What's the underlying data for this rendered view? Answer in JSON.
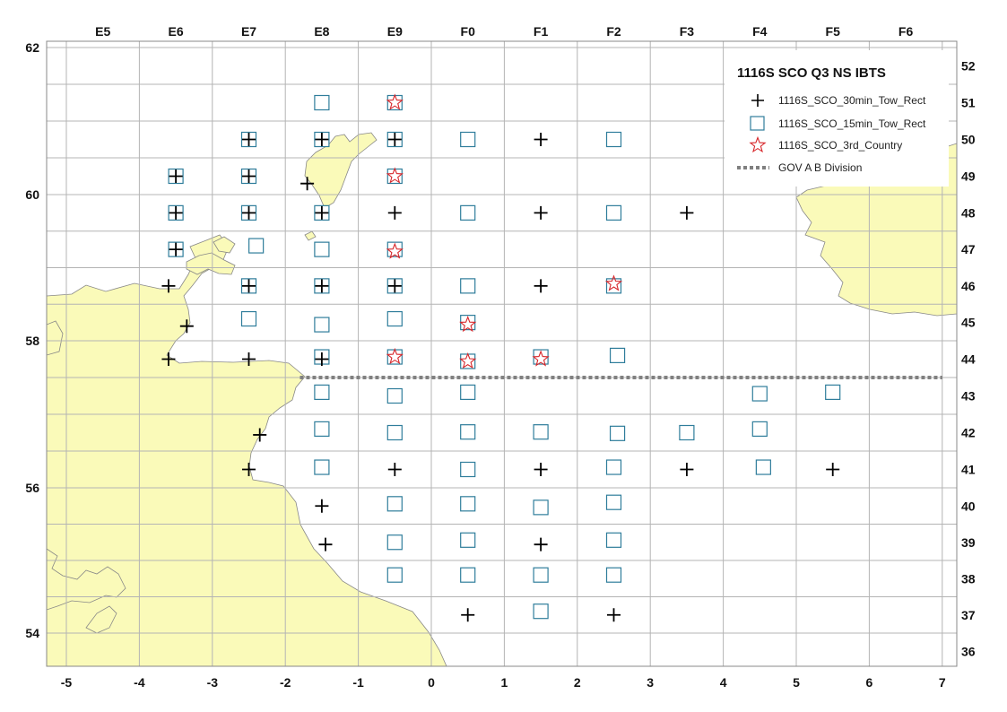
{
  "legend": {
    "title": "1116S SCO Q3 NS IBTS",
    "items": [
      {
        "label": "1116S_SCO_30min_Tow_Rect",
        "symbol": "plus"
      },
      {
        "label": "1116S_SCO_15min_Tow_Rect",
        "symbol": "square"
      },
      {
        "label": "1116S_SCO_3rd_Country",
        "symbol": "star"
      },
      {
        "label": "GOV A B Division",
        "symbol": "dashed-line"
      }
    ]
  },
  "axes": {
    "lon_ticks": [
      "-5",
      "-4",
      "-3",
      "-2",
      "-1",
      "0",
      "1",
      "2",
      "3",
      "4",
      "5",
      "6",
      "7"
    ],
    "lat_ticks": [
      "54",
      "56",
      "58",
      "60",
      "62"
    ],
    "ices_columns": [
      "E5",
      "E6",
      "E7",
      "E8",
      "E9",
      "F0",
      "F1",
      "F2",
      "F3",
      "F4",
      "F5",
      "F6"
    ],
    "ices_rows": [
      "36",
      "37",
      "38",
      "39",
      "40",
      "41",
      "42",
      "43",
      "44",
      "45",
      "46",
      "47",
      "48",
      "49",
      "50",
      "51",
      "52"
    ]
  },
  "colors": {
    "land": "#fafab9",
    "coast": "#888888",
    "grid": "#b4b4b4",
    "plus": "#000000",
    "square": "#2f7d9b",
    "star": "#d7262a",
    "division": "#808080"
  },
  "map_data": {
    "division_lat": 57.5,
    "division_lon_range": [
      -1.8,
      7.0
    ],
    "stations_30min": [
      [
        -2.5,
        60.75
      ],
      [
        -1.5,
        60.75
      ],
      [
        -0.5,
        60.75
      ],
      [
        1.5,
        60.75
      ],
      [
        -3.5,
        60.25
      ],
      [
        -2.5,
        60.25
      ],
      [
        -1.7,
        60.15
      ],
      [
        -3.5,
        59.75
      ],
      [
        -2.5,
        59.75
      ],
      [
        -1.5,
        59.75
      ],
      [
        -0.5,
        59.75
      ],
      [
        1.5,
        59.75
      ],
      [
        3.5,
        59.75
      ],
      [
        -3.5,
        59.25
      ],
      [
        -3.6,
        58.75
      ],
      [
        -2.5,
        58.75
      ],
      [
        -1.5,
        58.75
      ],
      [
        -0.5,
        58.75
      ],
      [
        1.5,
        58.75
      ],
      [
        -3.35,
        58.2
      ],
      [
        -3.6,
        57.75
      ],
      [
        -2.5,
        57.75
      ],
      [
        -1.5,
        57.75
      ],
      [
        -2.35,
        56.72
      ],
      [
        -2.5,
        56.25
      ],
      [
        -0.5,
        56.25
      ],
      [
        1.5,
        56.25
      ],
      [
        3.5,
        56.25
      ],
      [
        5.5,
        56.25
      ],
      [
        -1.5,
        55.75
      ],
      [
        -1.45,
        55.22
      ],
      [
        1.5,
        55.22
      ],
      [
        0.5,
        54.25
      ],
      [
        2.5,
        54.25
      ]
    ],
    "stations_15min": [
      [
        -1.5,
        61.25
      ],
      [
        -0.5,
        61.25
      ],
      [
        -2.5,
        60.75
      ],
      [
        -1.5,
        60.75
      ],
      [
        -0.5,
        60.75
      ],
      [
        0.5,
        60.75
      ],
      [
        2.5,
        60.75
      ],
      [
        -3.5,
        60.25
      ],
      [
        -2.5,
        60.25
      ],
      [
        -0.5,
        60.25
      ],
      [
        -3.5,
        59.75
      ],
      [
        -2.5,
        59.75
      ],
      [
        -1.5,
        59.75
      ],
      [
        0.5,
        59.75
      ],
      [
        2.5,
        59.75
      ],
      [
        -3.5,
        59.25
      ],
      [
        -2.4,
        59.3
      ],
      [
        -1.5,
        59.25
      ],
      [
        -0.5,
        59.25
      ],
      [
        -2.5,
        58.75
      ],
      [
        -1.5,
        58.75
      ],
      [
        -0.5,
        58.75
      ],
      [
        0.5,
        58.75
      ],
      [
        2.5,
        58.75
      ],
      [
        -2.5,
        58.3
      ],
      [
        -1.5,
        58.22
      ],
      [
        -0.5,
        58.3
      ],
      [
        0.5,
        58.25
      ],
      [
        -1.5,
        57.78
      ],
      [
        -0.5,
        57.78
      ],
      [
        0.5,
        57.72
      ],
      [
        1.5,
        57.78
      ],
      [
        2.55,
        57.8
      ],
      [
        -1.5,
        57.3
      ],
      [
        -0.5,
        57.25
      ],
      [
        0.5,
        57.3
      ],
      [
        4.5,
        57.28
      ],
      [
        5.5,
        57.3
      ],
      [
        -1.5,
        56.8
      ],
      [
        -0.5,
        56.75
      ],
      [
        0.5,
        56.76
      ],
      [
        1.5,
        56.76
      ],
      [
        2.55,
        56.74
      ],
      [
        3.5,
        56.75
      ],
      [
        4.5,
        56.8
      ],
      [
        -1.5,
        56.28
      ],
      [
        0.5,
        56.25
      ],
      [
        2.5,
        56.28
      ],
      [
        4.55,
        56.28
      ],
      [
        -0.5,
        55.78
      ],
      [
        0.5,
        55.78
      ],
      [
        1.5,
        55.73
      ],
      [
        2.5,
        55.8
      ],
      [
        -0.5,
        55.25
      ],
      [
        0.5,
        55.28
      ],
      [
        2.5,
        55.28
      ],
      [
        -0.5,
        54.8
      ],
      [
        0.5,
        54.8
      ],
      [
        1.5,
        54.8
      ],
      [
        2.5,
        54.8
      ],
      [
        1.5,
        54.3
      ]
    ],
    "stations_3rd_country": [
      [
        -0.5,
        61.25
      ],
      [
        -0.5,
        60.25
      ],
      [
        -0.5,
        59.22
      ],
      [
        2.5,
        58.78
      ],
      [
        0.5,
        58.22
      ],
      [
        -0.5,
        57.78
      ],
      [
        0.5,
        57.72
      ],
      [
        1.5,
        57.75
      ]
    ]
  }
}
